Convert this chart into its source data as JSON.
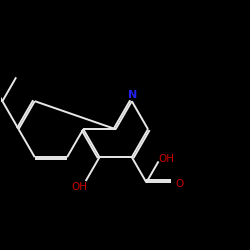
{
  "bg_color": "#000000",
  "bond_color": "#e8e8e8",
  "N_color": "#2222ee",
  "O_color": "#cc0000",
  "N_label": "N",
  "OH_label": "OH",
  "O_label": "O",
  "figsize": [
    2.5,
    2.5
  ],
  "dpi": 100,
  "lw": 1.4,
  "fs_label": 7.5
}
